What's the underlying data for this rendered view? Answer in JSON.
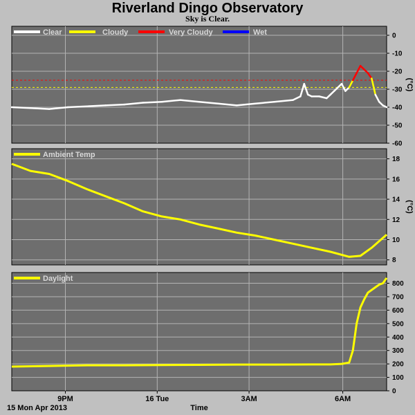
{
  "title": "Riverland Dingo Observatory",
  "subtitle": "Sky is Clear.",
  "date_label": "15 Mon Apr 2013",
  "x_axis_label": "Time",
  "x_ticks": [
    "9PM",
    "16 Tue",
    "3AM",
    "6AM"
  ],
  "colors": {
    "background": "#c0c0c0",
    "plot_bg": "#6e6e6e",
    "grid": "#b4b4b4",
    "clear": "#ffffff",
    "cloudy": "#ffff00",
    "very_cloudy": "#ff0000",
    "wet": "#0000ff",
    "ambient": "#ffff00",
    "daylight": "#ffff00"
  },
  "chart_data": [
    {
      "type": "line",
      "name": "sky-temperature",
      "unit": "(°C)",
      "ylim": [
        -60,
        5
      ],
      "yticks": [
        0,
        -10,
        -20,
        -30,
        -40,
        -50,
        -60
      ],
      "legend": [
        {
          "label": "Clear",
          "color": "#ffffff"
        },
        {
          "label": "Cloudy",
          "color": "#ffff00"
        },
        {
          "label": "Very Cloudy",
          "color": "#ff0000"
        },
        {
          "label": "Wet",
          "color": "#0000ff"
        }
      ],
      "thresholds": [
        {
          "value": -25,
          "color": "#ff0000"
        },
        {
          "value": -29,
          "color": "#ffff00"
        }
      ],
      "x": [
        0,
        0.05,
        0.1,
        0.15,
        0.2,
        0.25,
        0.3,
        0.35,
        0.4,
        0.45,
        0.5,
        0.55,
        0.6,
        0.65,
        0.7,
        0.75,
        0.77,
        0.78,
        0.79,
        0.8,
        0.82,
        0.84,
        0.85,
        0.86,
        0.88,
        0.89,
        0.9,
        0.91,
        0.92,
        0.93,
        0.94,
        0.95,
        0.96,
        0.97,
        0.98,
        0.99,
        1.0
      ],
      "values": [
        -40,
        -40.5,
        -41,
        -40,
        -39.5,
        -39,
        -38.5,
        -37.5,
        -37,
        -36,
        -37,
        -38,
        -39,
        -38,
        -37,
        -36,
        -34,
        -27,
        -33,
        -34,
        -34,
        -35,
        -33,
        -31,
        -27,
        -31,
        -29,
        -25,
        -21,
        -17,
        -19,
        -21,
        -24,
        -33,
        -37,
        -39,
        -40
      ],
      "status": [
        "Clear",
        "Clear",
        "Clear",
        "Clear",
        "Clear",
        "Clear",
        "Clear",
        "Clear",
        "Clear",
        "Clear",
        "Clear",
        "Clear",
        "Clear",
        "Clear",
        "Clear",
        "Clear",
        "Clear",
        "Clear",
        "Clear",
        "Clear",
        "Clear",
        "Clear",
        "Clear",
        "Clear",
        "Clear",
        "Clear",
        "Clear",
        "Cloudy",
        "Very Cloudy",
        "Very Cloudy",
        "Very Cloudy",
        "Very Cloudy",
        "Very Cloudy",
        "Cloudy",
        "Clear",
        "Clear",
        "Clear"
      ]
    },
    {
      "type": "line",
      "name": "ambient-temperature",
      "unit": "(°C)",
      "ylim": [
        7.5,
        19
      ],
      "yticks": [
        18,
        16,
        14,
        12,
        10,
        8
      ],
      "legend": [
        {
          "label": "Ambient Temp",
          "color": "#ffff00"
        }
      ],
      "x": [
        0,
        0.05,
        0.1,
        0.15,
        0.2,
        0.25,
        0.3,
        0.35,
        0.4,
        0.45,
        0.5,
        0.55,
        0.6,
        0.65,
        0.7,
        0.75,
        0.8,
        0.85,
        0.9,
        0.93,
        0.96,
        1.0
      ],
      "values": [
        17.5,
        16.8,
        16.5,
        15.8,
        15.0,
        14.3,
        13.6,
        12.8,
        12.3,
        12.0,
        11.5,
        11.1,
        10.7,
        10.4,
        10.0,
        9.6,
        9.2,
        8.8,
        8.3,
        8.4,
        9.2,
        10.5
      ]
    },
    {
      "type": "line",
      "name": "daylight",
      "unit": "",
      "ylim": [
        0,
        880
      ],
      "yticks": [
        800,
        700,
        600,
        500,
        400,
        300,
        200,
        100,
        0
      ],
      "legend": [
        {
          "label": "Daylight",
          "color": "#ffff00"
        }
      ],
      "x": [
        0,
        0.1,
        0.2,
        0.3,
        0.4,
        0.5,
        0.6,
        0.7,
        0.8,
        0.85,
        0.88,
        0.9,
        0.91,
        0.92,
        0.93,
        0.94,
        0.95,
        0.97,
        0.98,
        0.99,
        1.0
      ],
      "values": [
        180,
        185,
        190,
        190,
        192,
        193,
        195,
        195,
        196,
        196,
        200,
        210,
        300,
        500,
        620,
        680,
        730,
        770,
        790,
        800,
        840
      ]
    }
  ]
}
